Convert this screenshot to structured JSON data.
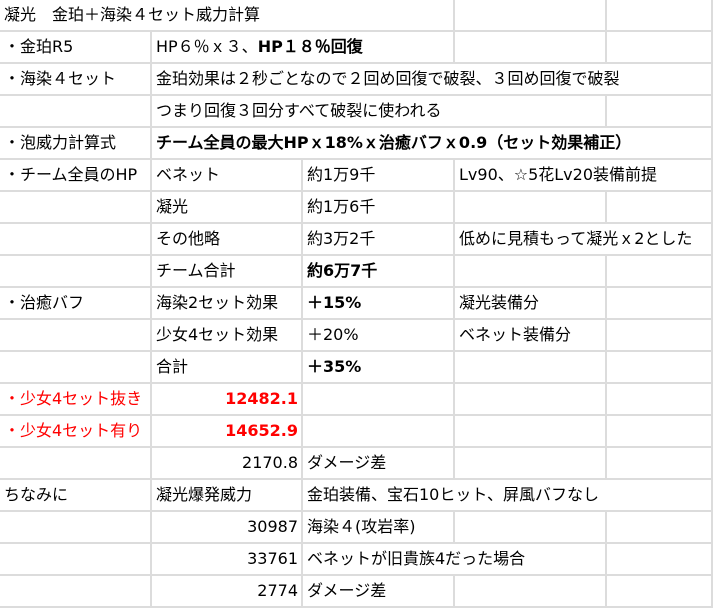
{
  "title": "凝光　金珀＋海染４セット威力計算",
  "rows": {
    "kinpaku": {
      "label": "・金珀R5",
      "text_normal": "HP６％ｘ３、",
      "text_bold": "HP１８％回復"
    },
    "kaisen": {
      "label": "・海染４セット",
      "text": "金珀効果は２秒ごとなので２回め回復で破裂、３回め回復で破裂"
    },
    "kaisen_note": {
      "text": "つまり回復３回分すべて破裂に使われる"
    },
    "formula": {
      "label": "・泡威力計算式",
      "text": "チーム全員の最大HPｘ18%ｘ治癒バフｘ0.9（セット効果補正）"
    },
    "team_hp": {
      "label": "・チーム全員のHP",
      "items": [
        {
          "name": "ベネット",
          "value": "約1万9千",
          "note": "Lv90、☆5花Lv20装備前提"
        },
        {
          "name": "凝光",
          "value": "約1万6千",
          "note": ""
        },
        {
          "name": "その他略",
          "value": "約3万2千",
          "note": "低めに見積もって凝光ｘ2とした"
        },
        {
          "name": "チーム合計",
          "value": "約6万7千",
          "note": ""
        }
      ]
    },
    "heal_buff": {
      "label": "・治癒バフ",
      "items": [
        {
          "name": "海染2セット効果",
          "value": "＋15%",
          "note": "凝光装備分"
        },
        {
          "name": "少女4セット効果",
          "value": "＋20%",
          "note": "ベネット装備分"
        },
        {
          "name": "合計",
          "value": "＋35%",
          "note": ""
        }
      ]
    },
    "without_maiden": {
      "label": "・少女4セット抜き",
      "value": "12482.1"
    },
    "with_maiden": {
      "label": "・少女4セット有り",
      "value": "14652.9"
    },
    "diff1": {
      "value": "2170.8",
      "label": "ダメージ差"
    },
    "aside": {
      "label": "ちなみに",
      "col_b": "凝光爆発威力",
      "note": "金珀装備、宝石10ヒット、屏風バフなし"
    },
    "burst": [
      {
        "value": "30987",
        "label": "海染４(攻岩率)"
      },
      {
        "value": "33761",
        "label": "ベネットが旧貴族4だった場合"
      },
      {
        "value": "2774",
        "label": "ダメージ差"
      }
    ]
  },
  "colors": {
    "grid": "#dcdcdc",
    "highlight": "#ff0000"
  }
}
